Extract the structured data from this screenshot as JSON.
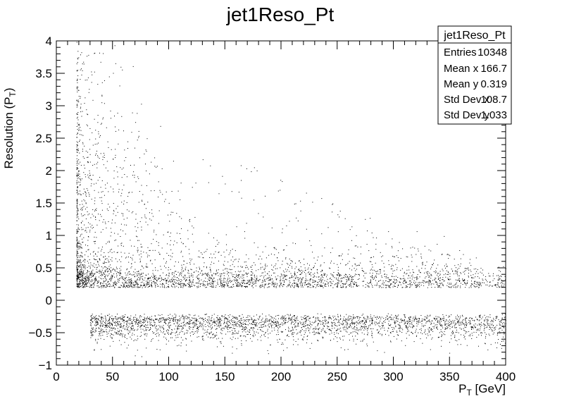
{
  "chart_data": {
    "type": "scatter",
    "title": "jet1Reso_Pt",
    "xlabel_main": "P",
    "xlabel_sub": "T",
    "xlabel_rest": " [GeV]",
    "ylabel_main": "Resolution (P",
    "ylabel_sub": "T",
    "ylabel_rest": ")",
    "xlim": [
      0,
      400
    ],
    "ylim": [
      -1,
      4
    ],
    "x_ticks": [
      {
        "value": 0,
        "label": "0"
      },
      {
        "value": 50,
        "label": "50"
      },
      {
        "value": 100,
        "label": "100"
      },
      {
        "value": 150,
        "label": "150"
      },
      {
        "value": 200,
        "label": "200"
      },
      {
        "value": 250,
        "label": "250"
      },
      {
        "value": 300,
        "label": "300"
      },
      {
        "value": 350,
        "label": "350"
      },
      {
        "value": 400,
        "label": "400"
      }
    ],
    "y_ticks": [
      {
        "value": -1,
        "label": "−1"
      },
      {
        "value": -0.5,
        "label": "−0.5"
      },
      {
        "value": 0,
        "label": "0"
      },
      {
        "value": 0.5,
        "label": "0.5"
      },
      {
        "value": 1,
        "label": "1"
      },
      {
        "value": 1.5,
        "label": "1.5"
      },
      {
        "value": 2,
        "label": "2"
      },
      {
        "value": 2.5,
        "label": "2.5"
      },
      {
        "value": 3,
        "label": "3"
      },
      {
        "value": 3.5,
        "label": "3.5"
      },
      {
        "value": 4,
        "label": "4"
      }
    ],
    "grid": false,
    "marker_color": "#000000",
    "stats_box": {
      "title": "jet1Reso_Pt",
      "rows": [
        {
          "label": "Entries",
          "value": "10348"
        },
        {
          "label": "Mean x",
          "value": "166.7"
        },
        {
          "label": "Mean y",
          "value": "0.319"
        },
        {
          "label": "Std Dev x",
          "value": "108.7"
        },
        {
          "label": "Std Dev y",
          "value": "1.033"
        }
      ],
      "placement": "top-right"
    }
  }
}
